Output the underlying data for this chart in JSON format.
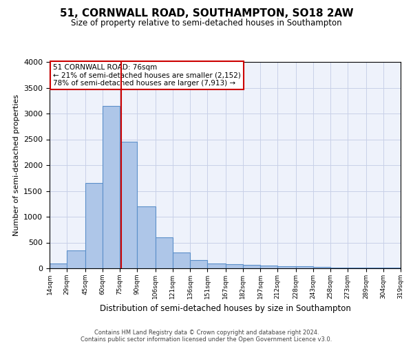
{
  "title": "51, CORNWALL ROAD, SOUTHAMPTON, SO18 2AW",
  "subtitle": "Size of property relative to semi-detached houses in Southampton",
  "xlabel": "Distribution of semi-detached houses by size in Southampton",
  "ylabel": "Number of semi-detached properties",
  "footnote1": "Contains HM Land Registry data © Crown copyright and database right 2024.",
  "footnote2": "Contains public sector information licensed under the Open Government Licence v3.0.",
  "property_label": "51 CORNWALL ROAD: 76sqm",
  "smaller_pct": "21% of semi-detached houses are smaller (2,152)",
  "larger_pct": "78% of semi-detached houses are larger (7,913)",
  "property_value": 76,
  "bin_edges": [
    14,
    29,
    45,
    60,
    75,
    90,
    106,
    121,
    136,
    151,
    167,
    182,
    197,
    212,
    228,
    243,
    258,
    273,
    289,
    304,
    319
  ],
  "bar_heights": [
    100,
    350,
    1650,
    3150,
    2450,
    1200,
    600,
    310,
    160,
    100,
    80,
    70,
    50,
    45,
    35,
    25,
    20,
    15,
    10,
    8
  ],
  "bar_color": "#aec6e8",
  "bar_edge_color": "#5b8fc9",
  "vline_color": "#cc0000",
  "annotation_box_edge": "#cc0000",
  "bg_color": "#eef2fb",
  "grid_color": "#c8d0e8"
}
